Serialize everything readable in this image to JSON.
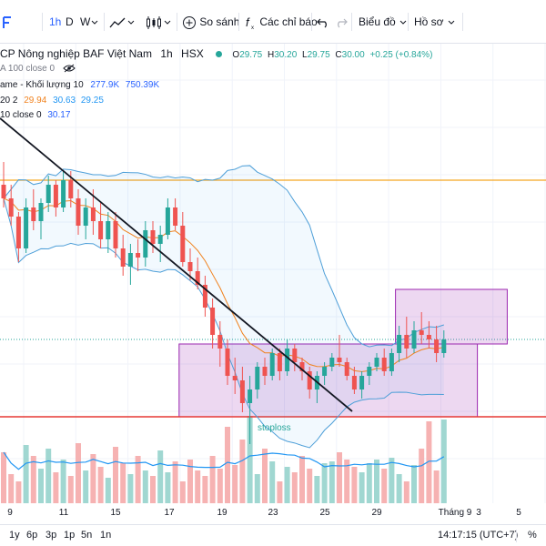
{
  "toolbar": {
    "interval": "1h",
    "day": "D",
    "week": "W",
    "compare": "So sánh",
    "indicators": "Các chỉ báo",
    "chart_menu": "Biểu đồ",
    "profile": "Hồ sơ"
  },
  "legend": {
    "title": "CP Nông nghiệp BAF Việt Nam",
    "interval": "1h",
    "exchange": "HSX",
    "o_label": "O",
    "o": "29.75",
    "h_label": "H",
    "h": "30.20",
    "l_label": "L",
    "l": "29.75",
    "c_label": "C",
    "c": "30.00",
    "change": "+0.25 (+0.84%)",
    "ma_line": "A 100 close 0",
    "vol_label": "ame - Khối lượng 10",
    "vol1": "277.9K",
    "vol2": "750.39K",
    "bb_label": "20 2",
    "bb1": "29.94",
    "bb2": "30.63",
    "bb3": "29.25",
    "ema_label": "10 close 0",
    "ema_val": "30.17"
  },
  "annotations": {
    "stoploss": "stoploss"
  },
  "xaxis": {
    "labels": [
      "9",
      "11",
      "15",
      "17",
      "19",
      "23",
      "25",
      "29",
      "Tháng 9",
      "3",
      "5"
    ]
  },
  "bottombar": {
    "ranges": [
      "1y",
      "6p",
      "3p",
      "1p",
      "5n",
      "1n"
    ],
    "time": "14:17:15 (UTC+7)",
    "percent": "%"
  },
  "colors": {
    "up": "#26a69a",
    "down": "#ef5350",
    "accent": "#2962ff",
    "bollinger": "#4e9fd8",
    "ema": "#f0821e",
    "box": "#9c27b0",
    "hline_orange": "#f5a623",
    "stoploss_line": "#e53935"
  },
  "chart_data": {
    "type": "candlestick",
    "symbol": "BAF",
    "timeframe": "1h",
    "candles": [
      [
        30.9,
        31.4,
        30.4,
        30.6
      ],
      [
        30.6,
        30.9,
        30.0,
        30.2
      ],
      [
        30.2,
        30.3,
        29.2,
        29.5
      ],
      [
        29.5,
        30.6,
        29.4,
        30.4
      ],
      [
        30.4,
        30.8,
        29.9,
        30.1
      ],
      [
        30.1,
        30.6,
        29.7,
        30.5
      ],
      [
        30.5,
        31.1,
        30.3,
        30.9
      ],
      [
        30.9,
        31.0,
        30.2,
        30.4
      ],
      [
        30.4,
        31.2,
        30.3,
        31.0
      ],
      [
        31.0,
        31.2,
        30.4,
        30.6
      ],
      [
        30.6,
        30.8,
        29.8,
        30.0
      ],
      [
        30.0,
        30.6,
        29.7,
        30.4
      ],
      [
        30.4,
        30.8,
        29.8,
        30.1
      ],
      [
        30.1,
        30.5,
        29.5,
        29.7
      ],
      [
        29.7,
        30.3,
        29.4,
        30.1
      ],
      [
        30.1,
        30.3,
        29.3,
        29.5
      ],
      [
        29.5,
        29.8,
        28.9,
        29.1
      ],
      [
        29.1,
        29.6,
        28.7,
        29.4
      ],
      [
        29.4,
        29.7,
        29.0,
        29.3
      ],
      [
        29.3,
        30.1,
        29.1,
        29.9
      ],
      [
        29.9,
        30.1,
        29.4,
        29.6
      ],
      [
        29.6,
        30.0,
        29.2,
        29.8
      ],
      [
        29.8,
        30.6,
        29.7,
        30.4
      ],
      [
        30.4,
        30.6,
        29.9,
        30.0
      ],
      [
        30.0,
        30.3,
        29.1,
        29.2
      ],
      [
        29.2,
        29.5,
        28.8,
        29.0
      ],
      [
        29.0,
        29.3,
        28.6,
        28.7
      ],
      [
        28.7,
        28.9,
        28.0,
        28.2
      ],
      [
        28.2,
        28.4,
        27.3,
        27.6
      ],
      [
        27.6,
        27.9,
        26.9,
        27.3
      ],
      [
        27.3,
        27.5,
        26.5,
        26.7
      ],
      [
        26.7,
        27.1,
        26.3,
        26.6
      ],
      [
        26.6,
        26.9,
        25.9,
        26.1
      ],
      [
        26.1,
        26.7,
        25.2,
        26.4
      ],
      [
        26.4,
        27.0,
        26.2,
        26.9
      ],
      [
        26.9,
        27.1,
        26.5,
        26.7
      ],
      [
        26.7,
        27.3,
        26.6,
        27.2
      ],
      [
        27.2,
        27.3,
        26.6,
        26.8
      ],
      [
        26.8,
        27.5,
        26.7,
        27.3
      ],
      [
        27.3,
        27.4,
        26.8,
        27.0
      ],
      [
        27.0,
        27.1,
        26.6,
        26.8
      ],
      [
        26.8,
        26.9,
        26.2,
        26.4
      ],
      [
        26.4,
        26.8,
        26.1,
        26.7
      ],
      [
        26.7,
        27.0,
        26.5,
        26.9
      ],
      [
        26.9,
        27.2,
        26.8,
        27.1
      ],
      [
        27.1,
        27.6,
        26.9,
        27.0
      ],
      [
        27.0,
        27.1,
        26.6,
        26.7
      ],
      [
        26.7,
        26.9,
        26.3,
        26.4
      ],
      [
        26.4,
        26.8,
        26.2,
        26.7
      ],
      [
        26.7,
        27.0,
        26.5,
        26.9
      ],
      [
        26.9,
        27.2,
        26.8,
        27.1
      ],
      [
        27.1,
        27.3,
        26.7,
        26.8
      ],
      [
        26.8,
        27.3,
        26.7,
        27.2
      ],
      [
        27.2,
        27.8,
        27.0,
        27.6
      ],
      [
        27.6,
        28.0,
        27.1,
        27.3
      ],
      [
        27.3,
        27.9,
        27.2,
        27.7
      ],
      [
        27.7,
        28.1,
        27.4,
        27.6
      ],
      [
        27.6,
        27.9,
        27.3,
        27.5
      ],
      [
        27.5,
        27.8,
        27.0,
        27.2
      ],
      [
        27.2,
        27.7,
        27.1,
        27.5
      ]
    ],
    "volume": [
      280,
      160,
      120,
      320,
      260,
      190,
      300,
      170,
      240,
      150,
      330,
      180,
      270,
      200,
      140,
      310,
      220,
      160,
      260,
      180,
      150,
      290,
      170,
      230,
      120,
      240,
      180,
      150,
      260,
      190,
      420,
      210,
      350,
      480,
      160,
      300,
      230,
      120,
      200,
      170,
      260,
      190,
      150,
      220,
      230,
      280,
      240,
      200,
      170,
      220,
      240,
      190,
      250,
      160,
      120,
      210,
      300,
      450,
      180,
      460
    ],
    "bollinger": {
      "period": 20,
      "mult": 2
    },
    "ema_period": 10,
    "trendline": {
      "from_index": 0,
      "to_index": 47
    },
    "hlines": [
      31.0,
      25.8
    ],
    "boxes": [
      {
        "from_index": 24,
        "to_index": 63,
        "top": 27.4,
        "bottom": 25.8
      },
      {
        "from_index": 53,
        "to_index": 67,
        "top": 28.6,
        "bottom": 27.4
      }
    ]
  }
}
